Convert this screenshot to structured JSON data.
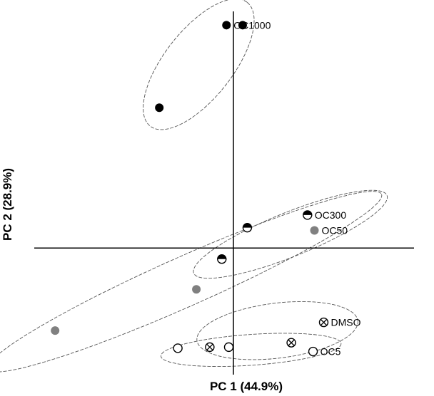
{
  "chart_data": {
    "type": "scatter",
    "title": "",
    "xlabel": "PC 1 (44.9%)",
    "ylabel": "PC 2 (28.9%)",
    "xlim": [
      -4.3,
      3.9
    ],
    "ylim": [
      -2.3,
      4.3
    ],
    "grid": false,
    "legend": "none",
    "colors": {
      "black": "#000000",
      "gray": "#808080",
      "white": "#ffffff",
      "ellipse": "#555555"
    },
    "groups": [
      {
        "name": "OC1000",
        "marker": "filled-black",
        "points": [
          [
            -0.15,
            4.05
          ],
          [
            0.2,
            4.05
          ],
          [
            -1.6,
            2.55
          ]
        ],
        "ellipse": {
          "cx": -0.75,
          "cy": 3.34,
          "rx": 1.7,
          "ry": 0.62,
          "angle_deg": -52
        }
      },
      {
        "name": "OC300",
        "marker": "half-black",
        "points": [
          [
            1.6,
            0.6
          ],
          [
            0.3,
            0.37
          ],
          [
            -0.25,
            -0.2
          ]
        ],
        "ellipse": {
          "cx": 1.23,
          "cy": 0.25,
          "rx": 2.25,
          "ry": 0.4,
          "angle_deg": -22
        }
      },
      {
        "name": "OC50",
        "marker": "filled-gray",
        "points": [
          [
            1.75,
            0.32
          ],
          [
            -0.8,
            -0.75
          ],
          [
            -3.85,
            -1.5
          ]
        ],
        "ellipse": {
          "cx": -1.05,
          "cy": -0.61,
          "rx": 4.65,
          "ry": 0.45,
          "angle_deg": -24
        }
      },
      {
        "name": "DMSO",
        "marker": "crossed",
        "points": [
          [
            1.95,
            -1.35
          ],
          [
            1.25,
            -1.72
          ],
          [
            -0.51,
            -1.8
          ]
        ],
        "ellipse": {
          "cx": 0.95,
          "cy": -1.5,
          "rx": 1.75,
          "ry": 0.5,
          "angle_deg": -7
        }
      },
      {
        "name": "OC5",
        "marker": "open",
        "points": [
          [
            1.72,
            -1.88
          ],
          [
            -0.1,
            -1.8
          ],
          [
            -1.2,
            -1.82
          ]
        ],
        "ellipse": {
          "cx": 0.38,
          "cy": -1.85,
          "rx": 1.95,
          "ry": 0.28,
          "angle_deg": -4
        }
      }
    ]
  }
}
